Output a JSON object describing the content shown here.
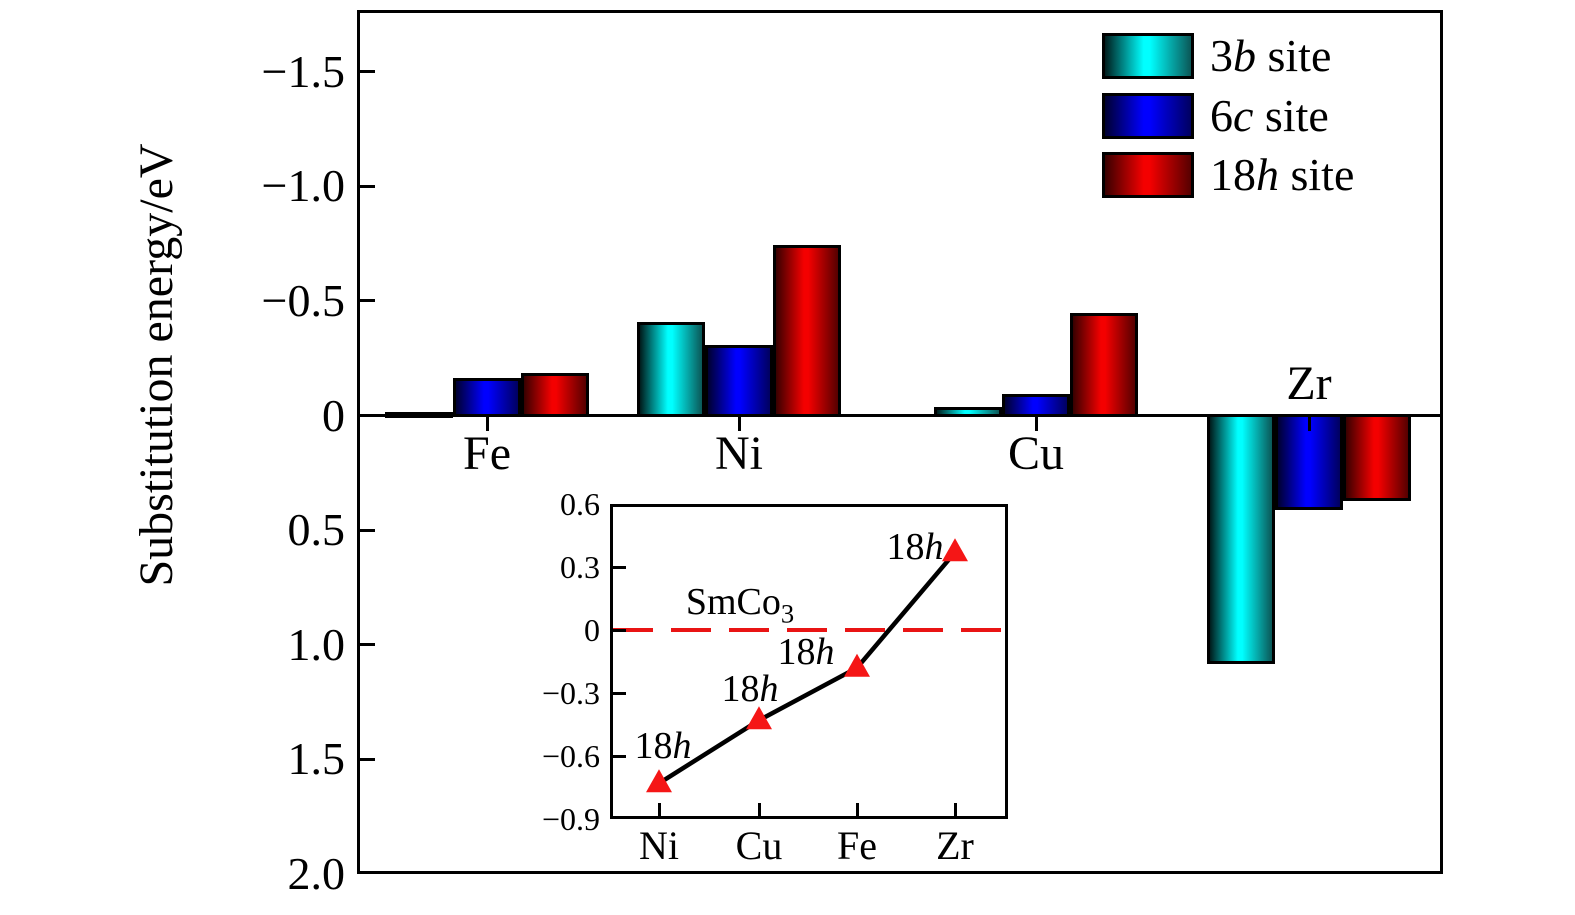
{
  "y_axis": {
    "label": "Substitution energy/eV",
    "tick_values": [
      -1.5,
      -1.0,
      -0.5,
      0,
      0.5,
      1.0,
      1.5,
      2.0
    ],
    "tick_labels": [
      "−1.5",
      "−1.0",
      "−0.5",
      "0",
      "0.5",
      "1.0",
      "1.5",
      "2.0"
    ]
  },
  "categories": [
    {
      "label": "Fe",
      "label_side": "below"
    },
    {
      "label": "Ni",
      "label_side": "below"
    },
    {
      "label": "Cu",
      "label_side": "below"
    },
    {
      "label": "Zr",
      "label_side": "above"
    }
  ],
  "legend": {
    "items": [
      {
        "prefix": "3",
        "italic": "b",
        "suffix": " site",
        "gradient": [
          "#001c1c",
          "#00ffff",
          "#0b5757"
        ]
      },
      {
        "prefix": "6",
        "italic": "c",
        "suffix": " site",
        "gradient": [
          "#000030",
          "#0000ff",
          "#000060"
        ]
      },
      {
        "prefix": "18",
        "italic": "h",
        "suffix": " site",
        "gradient": [
          "#380000",
          "#f40000",
          "#560000"
        ]
      }
    ]
  },
  "chart_data": [
    {
      "type": "bar",
      "title": "",
      "xlabel": "",
      "ylabel": "Substitution energy/eV",
      "categories": [
        "Fe",
        "Ni",
        "Cu",
        "Zr"
      ],
      "series": [
        {
          "name": "3b site",
          "color": "#00ffff",
          "values": [
            -0.02,
            -0.41,
            -0.04,
            1.08
          ]
        },
        {
          "name": "6c site",
          "color": "#0000ff",
          "values": [
            -0.17,
            -0.31,
            -0.1,
            0.41
          ]
        },
        {
          "name": "18h site",
          "color": "#ee0000",
          "values": [
            -0.19,
            -0.75,
            -0.45,
            0.37
          ]
        }
      ],
      "ylim": [
        -1.77,
        2.0
      ],
      "y_inverted": true,
      "grid": false,
      "legend_position": "top-right"
    },
    {
      "type": "line",
      "title": "",
      "x": [
        "Ni",
        "Cu",
        "Fe",
        "Zr"
      ],
      "series": [
        {
          "name": "18h",
          "values": [
            -0.73,
            -0.43,
            -0.18,
            0.37
          ]
        }
      ],
      "yticks": [
        0.6,
        0.3,
        0,
        -0.3,
        -0.6,
        -0.9
      ],
      "ylim": [
        -0.9,
        0.6
      ],
      "hline": {
        "y": 0,
        "label": "SmCo3",
        "style": "dashed"
      },
      "marker": "red-triangle",
      "grid": false
    }
  ],
  "inset": {
    "y_tick_values": [
      0.6,
      0.3,
      0,
      -0.3,
      -0.6,
      -0.9
    ],
    "y_tick_labels": [
      "0.6",
      "0.3",
      "0",
      "−0.3",
      "−0.6",
      "−0.9"
    ],
    "x_labels": [
      "Ni",
      "Cu",
      "Fe",
      "Zr"
    ],
    "point_label": {
      "prefix": "18",
      "italic": "h"
    },
    "hline_label": {
      "text": "SmCo",
      "sub": "3"
    },
    "colors": {
      "dash": "#e91414",
      "marker": "#f51616",
      "line": "#000000"
    }
  }
}
